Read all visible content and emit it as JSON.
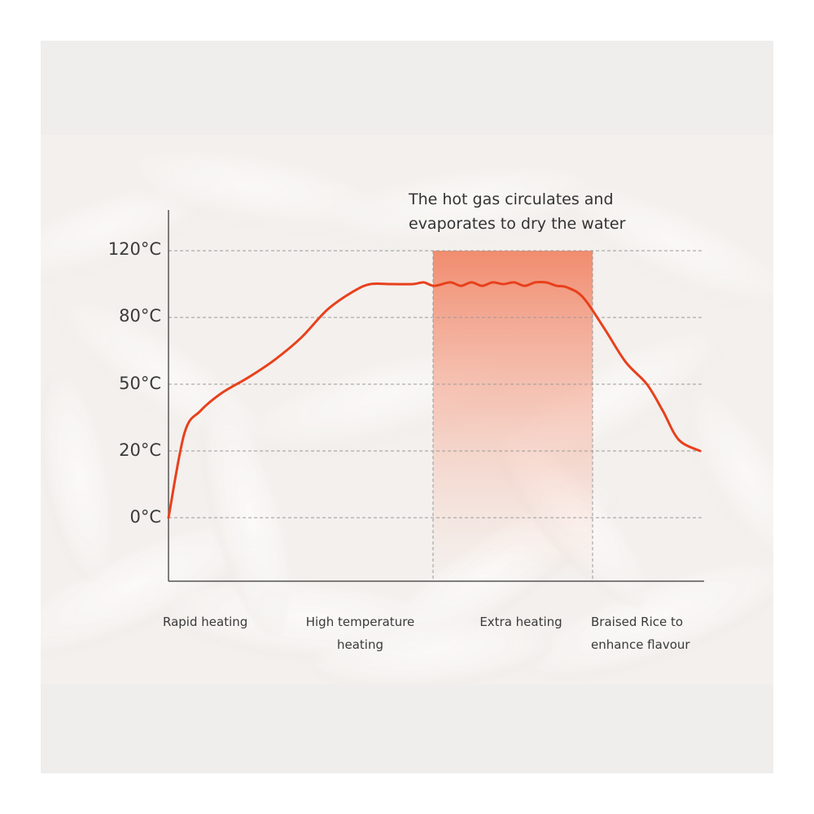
{
  "chart_data": {
    "type": "line",
    "title": "",
    "xlabel": "",
    "ylabel": "",
    "y_ticks": [
      "0°C",
      "20°C",
      "50°C",
      "80°C",
      "120°C"
    ],
    "y_tick_values": [
      0,
      20,
      50,
      80,
      120
    ],
    "grid": true,
    "stages": [
      "Rapid heating",
      "High temperature\nheating",
      "Extra heating",
      "Braised Rice to\nenhance flavour"
    ],
    "annotation": "The hot gas circulates and\nevaporates to dry the water",
    "highlight_stage": "Extra heating",
    "series": [
      {
        "color": "#e8401c",
        "x": [
          0,
          0.03,
          0.06,
          0.1,
          0.15,
          0.2,
          0.25,
          0.3,
          0.35,
          0.38,
          0.42,
          0.46,
          0.48,
          0.5,
          0.53,
          0.55,
          0.57,
          0.59,
          0.61,
          0.63,
          0.65,
          0.67,
          0.69,
          0.71,
          0.73,
          0.75,
          0.78,
          0.82,
          0.86,
          0.9,
          0.93,
          0.96,
          1.0
        ],
        "y": [
          0,
          28,
          38,
          46,
          53,
          61,
          71,
          85,
          96,
          100,
          100,
          100,
          101,
          99,
          101,
          99,
          101,
          99,
          101,
          100,
          101,
          99,
          101,
          101,
          99,
          98,
          92,
          75,
          60,
          50,
          38,
          25,
          20
        ]
      }
    ]
  },
  "colors": {
    "line": "#e8401c",
    "highlight": "#f08060",
    "grid": "#9a9a9a",
    "axis": "#555555"
  }
}
